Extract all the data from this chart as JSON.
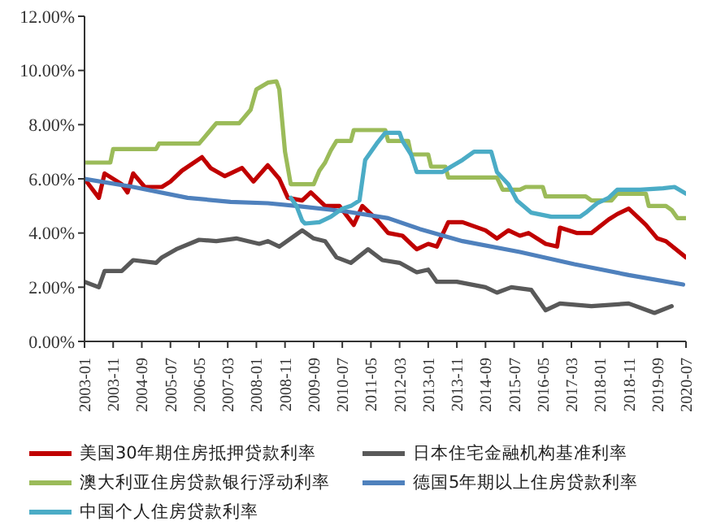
{
  "chart_data": {
    "type": "line",
    "xlim": [
      "2003-01",
      "2020-07"
    ],
    "xticks": [
      "2003-01",
      "2003-11",
      "2004-09",
      "2005-07",
      "2006-05",
      "2007-03",
      "2008-01",
      "2008-11",
      "2009-09",
      "2010-07",
      "2011-05",
      "2012-03",
      "2013-01",
      "2013-11",
      "2014-09",
      "2015-07",
      "2016-05",
      "2017-03",
      "2018-01",
      "2018-11",
      "2019-09",
      "2020-07"
    ],
    "ylim": [
      0,
      12
    ],
    "yticks": [
      {
        "value": 0,
        "label": "0.00%"
      },
      {
        "value": 2,
        "label": "2.00%"
      },
      {
        "value": 4,
        "label": "4.00%"
      },
      {
        "value": 6,
        "label": "6.00%"
      },
      {
        "value": 8,
        "label": "8.00%"
      },
      {
        "value": 10,
        "label": "10.00%"
      },
      {
        "value": 12,
        "label": "12.00%"
      }
    ],
    "grid": false,
    "legend": "bottom",
    "marker": "none",
    "line_style": "solid",
    "series": [
      {
        "name": "美国30年期住房抵押贷款利率",
        "color": "#c00000",
        "x": [
          "2003-01",
          "2003-06",
          "2003-08",
          "2004-02",
          "2004-04",
          "2004-06",
          "2004-10",
          "2005-04",
          "2005-07",
          "2005-11",
          "2006-06",
          "2006-09",
          "2007-02",
          "2007-08",
          "2007-12",
          "2008-05",
          "2008-09",
          "2008-12",
          "2009-05",
          "2009-08",
          "2010-01",
          "2010-06",
          "2010-11",
          "2011-02",
          "2011-07",
          "2011-11",
          "2012-04",
          "2012-09",
          "2013-01",
          "2013-04",
          "2013-08",
          "2014-01",
          "2014-09",
          "2015-01",
          "2015-05",
          "2015-09",
          "2015-12",
          "2016-06",
          "2016-10",
          "2016-11",
          "2017-05",
          "2017-10",
          "2018-04",
          "2018-07",
          "2018-11",
          "2019-05",
          "2019-09",
          "2019-12",
          "2020-07"
        ],
        "values": [
          6.0,
          5.3,
          6.2,
          5.8,
          5.5,
          6.2,
          5.7,
          5.7,
          5.9,
          6.3,
          6.8,
          6.4,
          6.1,
          6.4,
          5.9,
          6.5,
          6.0,
          5.3,
          5.2,
          5.5,
          5.0,
          5.0,
          4.3,
          5.0,
          4.5,
          4.0,
          3.9,
          3.4,
          3.6,
          3.5,
          4.4,
          4.4,
          4.1,
          3.8,
          4.1,
          3.9,
          4.0,
          3.6,
          3.5,
          4.2,
          4.0,
          4.0,
          4.5,
          4.7,
          4.9,
          4.3,
          3.8,
          3.7,
          3.1
        ]
      },
      {
        "name": "日本住宅金融机构基准利率",
        "color": "#595959",
        "x": [
          "2003-01",
          "2003-06",
          "2003-08",
          "2004-02",
          "2004-06",
          "2005-02",
          "2005-04",
          "2005-09",
          "2006-05",
          "2006-11",
          "2007-06",
          "2008-02",
          "2008-05",
          "2008-09",
          "2009-05",
          "2009-09",
          "2010-01",
          "2010-05",
          "2010-10",
          "2011-04",
          "2011-09",
          "2012-03",
          "2012-09",
          "2013-01",
          "2013-04",
          "2013-11",
          "2014-09",
          "2015-01",
          "2015-06",
          "2016-01",
          "2016-06",
          "2016-11",
          "2017-10",
          "2018-11",
          "2019-08",
          "2020-02"
        ],
        "values": [
          2.2,
          2.0,
          2.6,
          2.6,
          3.0,
          2.9,
          3.1,
          3.4,
          3.75,
          3.7,
          3.8,
          3.6,
          3.7,
          3.5,
          4.1,
          3.8,
          3.7,
          3.1,
          2.9,
          3.4,
          3.0,
          2.9,
          2.55,
          2.65,
          2.2,
          2.2,
          2.0,
          1.8,
          2.0,
          1.9,
          1.15,
          1.4,
          1.3,
          1.4,
          1.05,
          1.3
        ]
      },
      {
        "name": "澳大利亚住房贷款银行浮动利率",
        "color": "#9bbb59",
        "x": [
          "2003-01",
          "2003-10",
          "2003-11",
          "2005-02",
          "2005-03",
          "2006-05",
          "2006-07",
          "2006-09",
          "2006-11",
          "2007-07",
          "2007-09",
          "2007-11",
          "2008-01",
          "2008-05",
          "2008-08",
          "2008-09",
          "2008-11",
          "2009-01",
          "2009-09",
          "2009-11",
          "2010-01",
          "2010-03",
          "2010-05",
          "2010-10",
          "2010-11",
          "2011-10",
          "2011-11",
          "2012-06",
          "2012-07",
          "2013-01",
          "2013-02",
          "2013-07",
          "2013-08",
          "2015-01",
          "2015-03",
          "2015-09",
          "2015-11",
          "2016-05",
          "2016-06",
          "2017-08",
          "2017-10",
          "2018-05",
          "2018-07",
          "2019-05",
          "2019-06",
          "2019-12",
          "2020-02",
          "2020-04",
          "2020-07"
        ],
        "values": [
          6.6,
          6.6,
          7.1,
          7.1,
          7.3,
          7.3,
          7.55,
          7.8,
          8.05,
          8.05,
          8.3,
          8.55,
          9.3,
          9.55,
          9.6,
          9.3,
          7.0,
          5.8,
          5.8,
          6.3,
          6.6,
          7.05,
          7.4,
          7.4,
          7.8,
          7.8,
          7.4,
          7.4,
          6.9,
          6.9,
          6.45,
          6.45,
          6.05,
          6.05,
          5.6,
          5.6,
          5.7,
          5.7,
          5.35,
          5.35,
          5.2,
          5.2,
          5.45,
          5.45,
          5.0,
          5.0,
          4.85,
          4.55,
          4.55
        ]
      },
      {
        "name": "德国5年期以上住房贷款利率",
        "color": "#4f81bd",
        "x": [
          "2003-01",
          "2004-06",
          "2006-01",
          "2007-04",
          "2008-05",
          "2009-03",
          "2010-08",
          "2011-11",
          "2012-10",
          "2014-01",
          "2015-09",
          "2017-04",
          "2018-11",
          "2020-06"
        ],
        "values": [
          6.0,
          5.7,
          5.3,
          5.15,
          5.1,
          5.0,
          4.8,
          4.55,
          4.15,
          3.7,
          3.3,
          2.85,
          2.45,
          2.1
        ]
      },
      {
        "name": "中国个人住房贷款利率",
        "color": "#4bacc6",
        "x": [
          "2009-01",
          "2009-03",
          "2009-05",
          "2009-06",
          "2009-11",
          "2010-03",
          "2010-07",
          "2010-10",
          "2011-01",
          "2011-03",
          "2011-07",
          "2011-10",
          "2012-03",
          "2012-04",
          "2012-07",
          "2012-09",
          "2013-06",
          "2013-09",
          "2014-01",
          "2014-05",
          "2014-11",
          "2015-01",
          "2015-05",
          "2015-08",
          "2016-01",
          "2016-08",
          "2017-06",
          "2017-08",
          "2017-12",
          "2018-04",
          "2018-07",
          "2019-03",
          "2019-11",
          "2020-03",
          "2020-07"
        ],
        "values": [
          5.3,
          5.0,
          4.45,
          4.35,
          4.4,
          4.6,
          4.9,
          5.0,
          5.2,
          6.7,
          7.3,
          7.7,
          7.7,
          7.4,
          6.9,
          6.25,
          6.25,
          6.45,
          6.7,
          7.0,
          7.0,
          6.25,
          5.8,
          5.2,
          4.75,
          4.6,
          4.6,
          4.75,
          5.1,
          5.3,
          5.6,
          5.6,
          5.65,
          5.7,
          5.45
        ]
      }
    ]
  }
}
